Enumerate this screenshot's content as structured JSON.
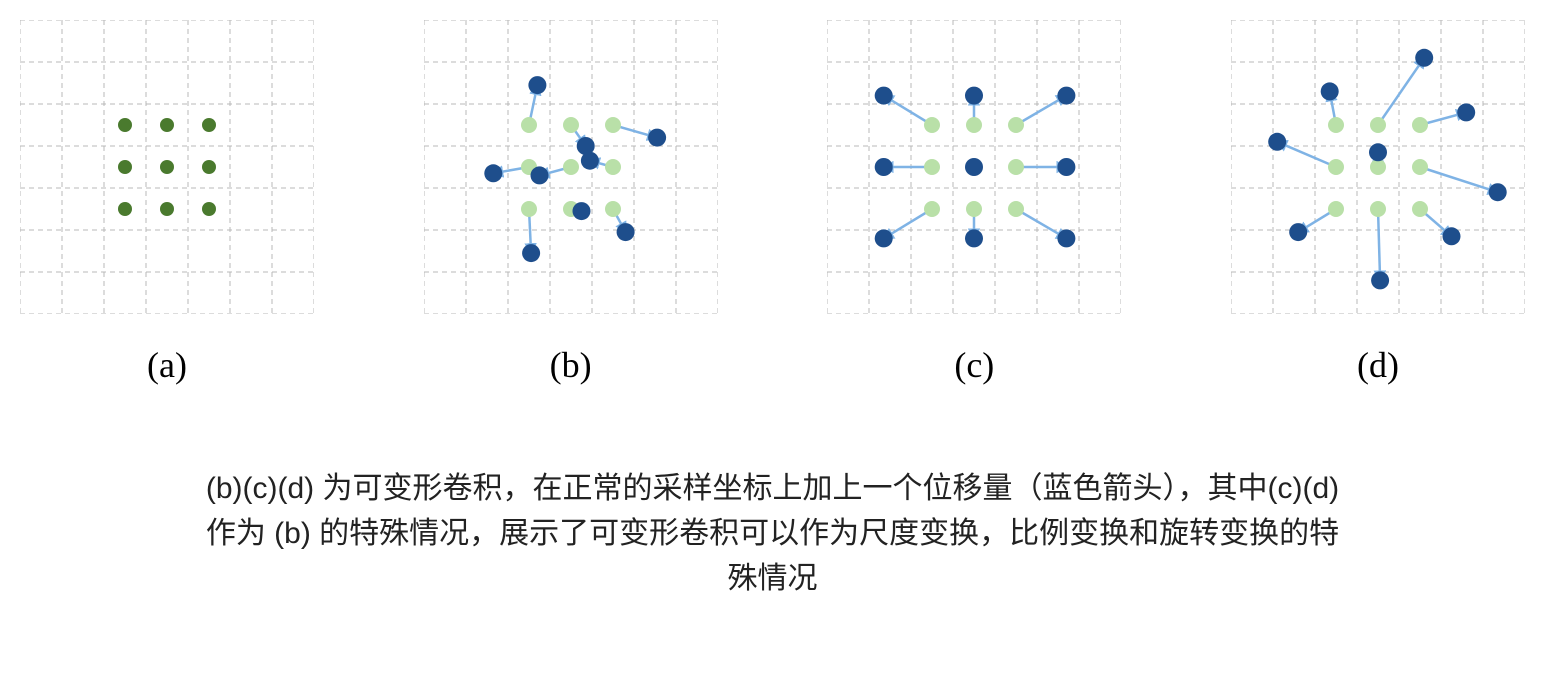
{
  "figure": {
    "grid": {
      "cells": 7,
      "cell_size": 42,
      "stroke": "#b8b8b8",
      "stroke_width": 1,
      "dash": "5,4",
      "bg": "#ffffff"
    },
    "dots": {
      "radius_green_solid": 7,
      "radius_green_light": 8,
      "radius_blue": 9,
      "color_green_solid": "#4a7a2e",
      "color_green_light": "#b9e0a8",
      "color_blue": "#1e4e8c",
      "arrow_color": "#7fb3e5",
      "arrow_width": 2.5
    },
    "panels": [
      {
        "id": "a",
        "label": "(a)",
        "green_solid": [
          [
            2,
            2
          ],
          [
            3,
            2
          ],
          [
            4,
            2
          ],
          [
            2,
            3
          ],
          [
            3,
            3
          ],
          [
            4,
            3
          ],
          [
            2,
            4
          ],
          [
            3,
            4
          ],
          [
            4,
            4
          ]
        ],
        "green_light": [],
        "blue": [],
        "arrows": []
      },
      {
        "id": "b",
        "label": "(b)",
        "green_solid": [],
        "green_light": [
          [
            2,
            2
          ],
          [
            3,
            2
          ],
          [
            4,
            2
          ],
          [
            2,
            3
          ],
          [
            3,
            3
          ],
          [
            4,
            3
          ],
          [
            2,
            4
          ],
          [
            3,
            4
          ],
          [
            4,
            4
          ]
        ],
        "blue": [
          [
            2.2,
            1.05
          ],
          [
            3.35,
            2.5
          ],
          [
            5.05,
            2.3
          ],
          [
            1.15,
            3.15
          ],
          [
            2.25,
            3.2
          ],
          [
            3.45,
            2.85
          ],
          [
            4.3,
            4.55
          ],
          [
            2.05,
            5.05
          ],
          [
            3.25,
            4.05
          ]
        ],
        "arrows": [
          [
            [
              2,
              2
            ],
            [
              2.2,
              1.05
            ]
          ],
          [
            [
              3,
              2
            ],
            [
              3.35,
              2.5
            ]
          ],
          [
            [
              4,
              2
            ],
            [
              5.05,
              2.3
            ]
          ],
          [
            [
              2,
              3
            ],
            [
              1.15,
              3.15
            ]
          ],
          [
            [
              3,
              3
            ],
            [
              2.25,
              3.2
            ]
          ],
          [
            [
              4,
              3
            ],
            [
              3.45,
              2.85
            ]
          ],
          [
            [
              4,
              4
            ],
            [
              4.3,
              4.55
            ]
          ],
          [
            [
              2,
              4
            ],
            [
              2.05,
              5.05
            ]
          ],
          [
            [
              3,
              4
            ],
            [
              3.25,
              4.05
            ]
          ]
        ]
      },
      {
        "id": "c",
        "label": "(c)",
        "green_solid": [],
        "green_light": [
          [
            2,
            2
          ],
          [
            3,
            2
          ],
          [
            4,
            2
          ],
          [
            2,
            3
          ],
          [
            3,
            3
          ],
          [
            4,
            3
          ],
          [
            2,
            4
          ],
          [
            3,
            4
          ],
          [
            4,
            4
          ]
        ],
        "blue": [
          [
            0.85,
            1.3
          ],
          [
            3,
            1.3
          ],
          [
            5.2,
            1.3
          ],
          [
            0.85,
            3.0
          ],
          [
            3,
            3.0
          ],
          [
            5.2,
            3.0
          ],
          [
            0.85,
            4.7
          ],
          [
            3,
            4.7
          ],
          [
            5.2,
            4.7
          ]
        ],
        "arrows": [
          [
            [
              2,
              2
            ],
            [
              0.85,
              1.3
            ]
          ],
          [
            [
              3,
              2
            ],
            [
              3,
              1.3
            ]
          ],
          [
            [
              4,
              2
            ],
            [
              5.2,
              1.3
            ]
          ],
          [
            [
              2,
              3
            ],
            [
              0.85,
              3.0
            ]
          ],
          [
            [
              4,
              3
            ],
            [
              5.2,
              3.0
            ]
          ],
          [
            [
              2,
              4
            ],
            [
              0.85,
              4.7
            ]
          ],
          [
            [
              3,
              4
            ],
            [
              3,
              4.7
            ]
          ],
          [
            [
              4,
              4
            ],
            [
              5.2,
              4.7
            ]
          ]
        ]
      },
      {
        "id": "d",
        "label": "(d)",
        "green_solid": [],
        "green_light": [
          [
            2,
            2
          ],
          [
            3,
            2
          ],
          [
            4,
            2
          ],
          [
            2,
            3
          ],
          [
            3,
            3
          ],
          [
            4,
            3
          ],
          [
            2,
            4
          ],
          [
            3,
            4
          ],
          [
            4,
            4
          ]
        ],
        "blue": [
          [
            1.85,
            1.2
          ],
          [
            4.1,
            0.4
          ],
          [
            5.1,
            1.7
          ],
          [
            0.6,
            2.4
          ],
          [
            3.0,
            2.65
          ],
          [
            5.85,
            3.6
          ],
          [
            1.1,
            4.55
          ],
          [
            3.05,
            5.7
          ],
          [
            4.75,
            4.65
          ]
        ],
        "arrows": [
          [
            [
              2,
              2
            ],
            [
              1.85,
              1.2
            ]
          ],
          [
            [
              3,
              2
            ],
            [
              4.1,
              0.4
            ]
          ],
          [
            [
              4,
              2
            ],
            [
              5.1,
              1.7
            ]
          ],
          [
            [
              2,
              3
            ],
            [
              0.6,
              2.4
            ]
          ],
          [
            [
              3,
              3
            ],
            [
              3.0,
              2.65
            ]
          ],
          [
            [
              4,
              3
            ],
            [
              5.85,
              3.6
            ]
          ],
          [
            [
              2,
              4
            ],
            [
              1.1,
              4.55
            ]
          ],
          [
            [
              3,
              4
            ],
            [
              3.05,
              5.7
            ]
          ],
          [
            [
              4,
              4
            ],
            [
              4.75,
              4.65
            ]
          ]
        ]
      }
    ],
    "caption_lines": [
      "(b)(c)(d) 为可变形卷积，在正常的采样坐标上加上一个位移量（蓝色箭头），其中(c)(d)",
      "作为 (b) 的特殊情况，展示了可变形卷积可以作为尺度变换，比例变换和旋转变换的特",
      "殊情况"
    ]
  }
}
